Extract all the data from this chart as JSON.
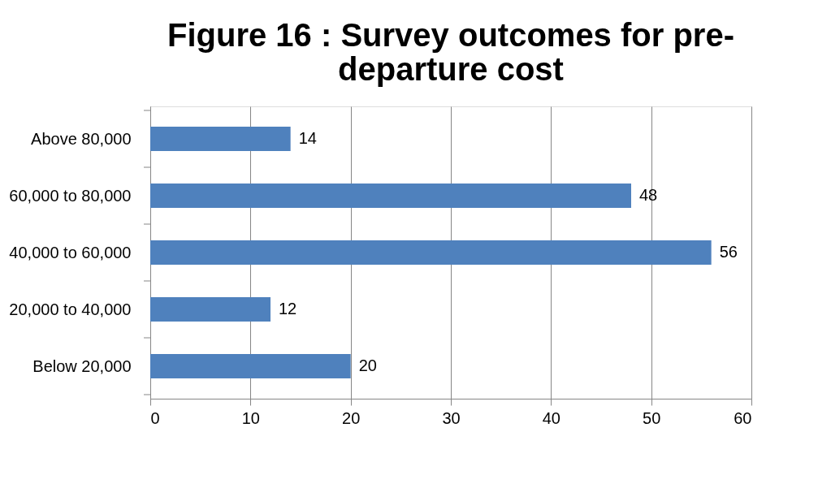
{
  "chart_data": {
    "type": "bar",
    "orientation": "horizontal",
    "title": "Figure 16 : Survey outcomes for pre-departure cost",
    "categories": [
      "Above 80,000",
      "60,000 to 80,000",
      "40,000 to 60,000",
      "20,000 to 40,000",
      "Below 20,000"
    ],
    "values": [
      14,
      48,
      56,
      12,
      20
    ],
    "color": "#4f81bd",
    "xlim": [
      0,
      60
    ],
    "xticks": [
      0,
      10,
      20,
      30,
      40,
      50,
      60
    ],
    "grid": "x",
    "data_labels": true
  }
}
